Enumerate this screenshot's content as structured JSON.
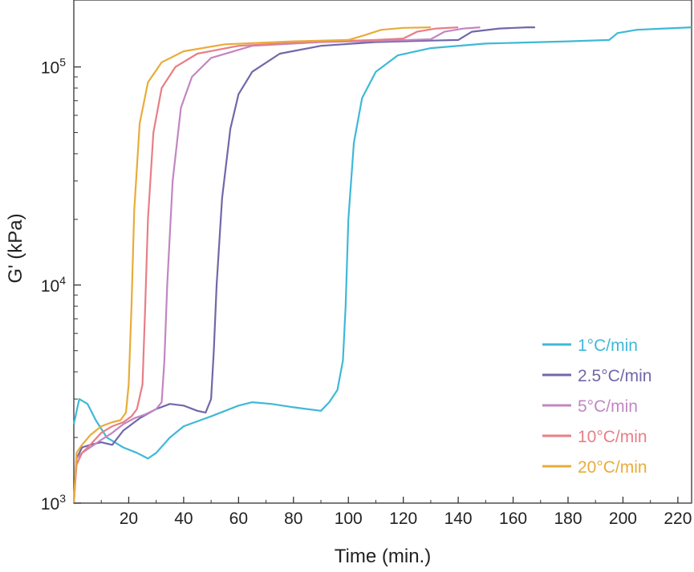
{
  "chart_data": {
    "type": "line",
    "title": "",
    "xlabel": "Time (min.)",
    "ylabel": "G' (kPa)",
    "y_scale": "log",
    "xlim": [
      0,
      225
    ],
    "ylim": [
      1000,
      200000
    ],
    "x_ticks": [
      20,
      40,
      60,
      80,
      100,
      120,
      140,
      160,
      180,
      200,
      220
    ],
    "x_tick_labels": [
      "20",
      "40",
      "60",
      "80",
      "100",
      "120",
      "140",
      "160",
      "180",
      "200",
      "220"
    ],
    "y_ticks": [
      {
        "value": 1000,
        "base": "10",
        "exp": "3"
      },
      {
        "value": 10000,
        "base": "10",
        "exp": "4"
      },
      {
        "value": 100000,
        "base": "10",
        "exp": "5"
      }
    ],
    "grid": false,
    "legend_position": "bottom-right",
    "series": [
      {
        "name": "1°C/min",
        "color": "#3fb8d8",
        "points": [
          [
            0,
            2300
          ],
          [
            2,
            3000
          ],
          [
            5,
            2850
          ],
          [
            8,
            2400
          ],
          [
            12,
            2000
          ],
          [
            18,
            1800
          ],
          [
            23,
            1700
          ],
          [
            27,
            1600
          ],
          [
            30,
            1700
          ],
          [
            35,
            2000
          ],
          [
            40,
            2250
          ],
          [
            50,
            2500
          ],
          [
            60,
            2800
          ],
          [
            65,
            2900
          ],
          [
            72,
            2850
          ],
          [
            80,
            2750
          ],
          [
            90,
            2650
          ],
          [
            93,
            2900
          ],
          [
            96,
            3300
          ],
          [
            98,
            4500
          ],
          [
            99,
            8000
          ],
          [
            100,
            20000
          ],
          [
            102,
            45000
          ],
          [
            105,
            72000
          ],
          [
            110,
            95000
          ],
          [
            118,
            113000
          ],
          [
            130,
            122000
          ],
          [
            150,
            128000
          ],
          [
            180,
            131000
          ],
          [
            195,
            133000
          ],
          [
            198,
            143000
          ],
          [
            205,
            148000
          ],
          [
            215,
            150000
          ],
          [
            225,
            152000
          ]
        ]
      },
      {
        "name": "2.5°C/min",
        "color": "#7068a8",
        "points": [
          [
            0,
            1000
          ],
          [
            1,
            1600
          ],
          [
            3,
            1800
          ],
          [
            6,
            1850
          ],
          [
            10,
            1900
          ],
          [
            14,
            1850
          ],
          [
            18,
            2150
          ],
          [
            24,
            2450
          ],
          [
            30,
            2700
          ],
          [
            35,
            2850
          ],
          [
            40,
            2800
          ],
          [
            45,
            2650
          ],
          [
            48,
            2600
          ],
          [
            50,
            3000
          ],
          [
            51,
            5000
          ],
          [
            52,
            10000
          ],
          [
            54,
            25000
          ],
          [
            57,
            52000
          ],
          [
            60,
            75000
          ],
          [
            65,
            95000
          ],
          [
            75,
            115000
          ],
          [
            90,
            125000
          ],
          [
            110,
            130000
          ],
          [
            130,
            132000
          ],
          [
            140,
            133000
          ],
          [
            145,
            145000
          ],
          [
            155,
            150000
          ],
          [
            165,
            152000
          ],
          [
            168,
            152000
          ]
        ]
      },
      {
        "name": "5°C/min",
        "color": "#c286c2",
        "points": [
          [
            0,
            1000
          ],
          [
            1,
            1600
          ],
          [
            3,
            1700
          ],
          [
            6,
            1800
          ],
          [
            10,
            1950
          ],
          [
            14,
            2100
          ],
          [
            18,
            2300
          ],
          [
            22,
            2450
          ],
          [
            26,
            2550
          ],
          [
            30,
            2700
          ],
          [
            32,
            2900
          ],
          [
            33,
            4500
          ],
          [
            34,
            10000
          ],
          [
            36,
            30000
          ],
          [
            39,
            65000
          ],
          [
            43,
            90000
          ],
          [
            50,
            110000
          ],
          [
            65,
            125000
          ],
          [
            90,
            130000
          ],
          [
            115,
            132000
          ],
          [
            130,
            134000
          ],
          [
            135,
            145000
          ],
          [
            142,
            150000
          ],
          [
            148,
            152000
          ]
        ]
      },
      {
        "name": "10°C/min",
        "color": "#e87e86",
        "points": [
          [
            0,
            1000
          ],
          [
            1,
            1500
          ],
          [
            3,
            1700
          ],
          [
            6,
            1850
          ],
          [
            10,
            2100
          ],
          [
            14,
            2250
          ],
          [
            18,
            2350
          ],
          [
            21,
            2500
          ],
          [
            23,
            2700
          ],
          [
            25,
            3500
          ],
          [
            26,
            8000
          ],
          [
            27,
            20000
          ],
          [
            29,
            50000
          ],
          [
            32,
            80000
          ],
          [
            37,
            100000
          ],
          [
            45,
            115000
          ],
          [
            60,
            125000
          ],
          [
            85,
            130000
          ],
          [
            110,
            133000
          ],
          [
            120,
            135000
          ],
          [
            125,
            145000
          ],
          [
            132,
            150000
          ],
          [
            140,
            152000
          ]
        ]
      },
      {
        "name": "20°C/min",
        "color": "#e8ac3a",
        "points": [
          [
            0,
            1000
          ],
          [
            1,
            1700
          ],
          [
            3,
            1850
          ],
          [
            6,
            2050
          ],
          [
            10,
            2250
          ],
          [
            14,
            2350
          ],
          [
            17,
            2400
          ],
          [
            19,
            2600
          ],
          [
            20,
            3500
          ],
          [
            21,
            8000
          ],
          [
            22,
            22000
          ],
          [
            24,
            55000
          ],
          [
            27,
            85000
          ],
          [
            32,
            105000
          ],
          [
            40,
            118000
          ],
          [
            55,
            127000
          ],
          [
            80,
            131000
          ],
          [
            100,
            133000
          ],
          [
            106,
            140000
          ],
          [
            112,
            148000
          ],
          [
            120,
            151000
          ],
          [
            130,
            152000
          ]
        ]
      }
    ]
  }
}
